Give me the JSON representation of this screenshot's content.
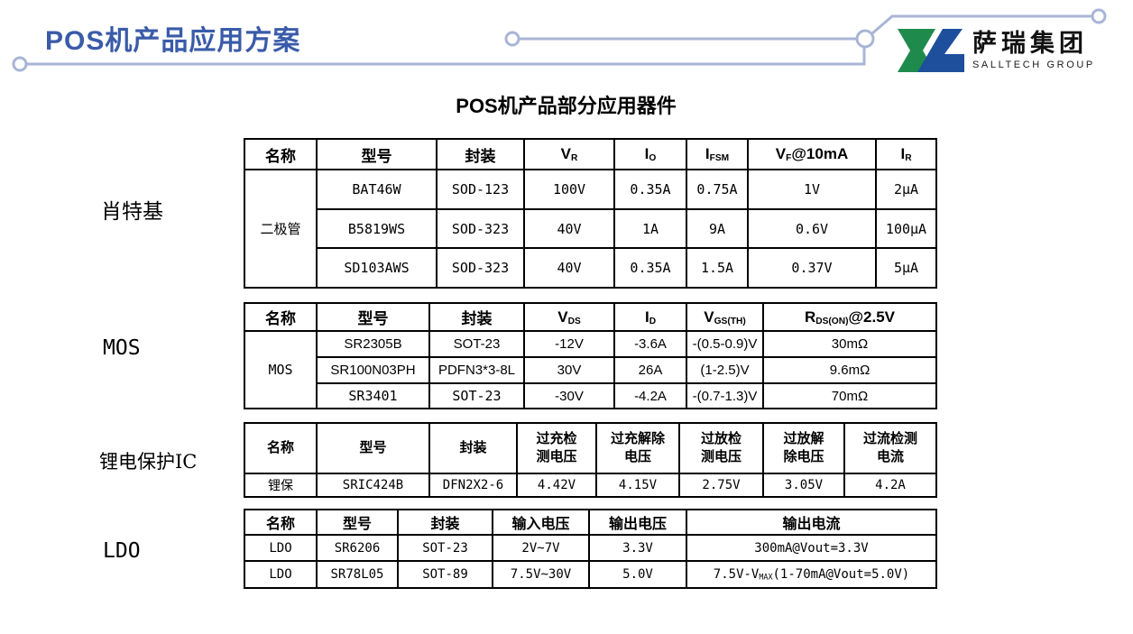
{
  "page": {
    "title": "POS机产品应用方案",
    "section_title": "POS机产品部分应用器件",
    "logo": {
      "company_cn": "萨瑞集团",
      "company_en": "SALLTECH GROUP"
    }
  },
  "colors": {
    "title_blue": "#3A5BA9",
    "decor_line": "#A9B5D6",
    "logo_green": "#1E8B4D",
    "logo_blue": "#1D4F9D",
    "table_border": "#000000"
  },
  "icons": {
    "logo_mark": "salltech-logo-mark",
    "decor": "circuit-line-decoration"
  },
  "tables": [
    {
      "id": "schottky",
      "group_label": "肖特基",
      "columns": [
        "名称",
        "型号",
        "封装",
        {
          "pre": "V",
          "sub": "R"
        },
        {
          "pre": "I",
          "sub": "O"
        },
        {
          "pre": "I",
          "sub": "FSM"
        },
        {
          "pre": "V",
          "sub": "F",
          "post": "@10mA"
        },
        {
          "pre": "I",
          "sub": "R"
        }
      ],
      "name_cell": {
        "text": "二极管",
        "rowspan": 3
      },
      "rows": [
        [
          "BAT46W",
          "SOD-123",
          "100V",
          "0.35A",
          "0.75A",
          "1V",
          "2μA"
        ],
        [
          "B5819WS",
          "SOD-323",
          "40V",
          "1A",
          "9A",
          "0.6V",
          "100μA"
        ],
        [
          "SD103AWS",
          "SOD-323",
          "40V",
          "0.35A",
          "1.5A",
          "0.37V",
          "5μA"
        ]
      ]
    },
    {
      "id": "mos",
      "group_label": "MOS",
      "columns": [
        "名称",
        "型号",
        "封装",
        {
          "pre": "V",
          "sub": "DS"
        },
        {
          "pre": "I",
          "sub": "D"
        },
        {
          "pre": "V",
          "sub": "GS(TH)"
        },
        {
          "pre": "R",
          "sub": "DS(ON)",
          "post": "@2.5V"
        }
      ],
      "name_cell": {
        "text": "MOS",
        "rowspan": 3
      },
      "rows": [
        [
          "SR2305B",
          "SOT-23",
          "-12V",
          "-3.6A",
          "-(0.5-0.9)V",
          "30mΩ"
        ],
        [
          "SR100N03PH",
          "PDFN3*3-8L",
          "30V",
          "26A",
          "(1-2.5)V",
          "9.6mΩ"
        ],
        [
          "SR3401",
          "SOT-23",
          "-30V",
          "-4.2A",
          "-(0.7-1.3)V",
          "70mΩ"
        ]
      ]
    },
    {
      "id": "li-protection",
      "group_label": "锂电保护IC",
      "columns": [
        "名称",
        "型号",
        "封装",
        "过充检\n测电压",
        "过充解除\n电压",
        "过放检\n测电压",
        "过放解\n除电压",
        "过流检测\n电流"
      ],
      "name_cell": null,
      "rows": [
        [
          "锂保",
          "SRIC424B",
          "DFN2X2-6",
          "4.42V",
          "4.15V",
          "2.75V",
          "3.05V",
          "4.2A"
        ]
      ]
    },
    {
      "id": "ldo",
      "group_label": "LDO",
      "columns": [
        "名称",
        "型号",
        "封装",
        "输入电压",
        "输出电压",
        "输出电流"
      ],
      "name_cell": null,
      "rows": [
        [
          "LDO",
          "SR6206",
          "SOT-23",
          "2V~7V",
          "3.3V",
          "300mA@Vout=3.3V"
        ],
        [
          "LDO",
          "SR78L05",
          "SOT-89",
          "7.5V~30V",
          "5.0V",
          {
            "pre": "7.5V-V",
            "sub": "MAX",
            "post": "(1-70mA@Vout=5.0V)"
          }
        ]
      ]
    }
  ]
}
